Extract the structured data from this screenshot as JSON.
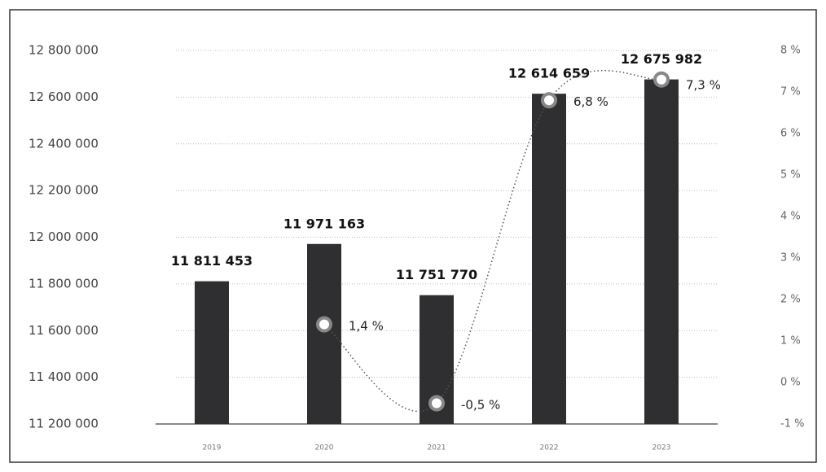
{
  "chart_data": {
    "type": "bar",
    "categories": [
      "2019",
      "2020",
      "2021",
      "2022",
      "2023"
    ],
    "series": [
      {
        "color": "#2f2f31",
        "values": [
          11811453,
          11971163,
          11751770,
          12614659,
          12675982
        ],
        "value_labels": [
          "11 811 453",
          "11 971 163",
          "11 751 770",
          "12 614 659",
          "12 675 982"
        ]
      },
      {
        "type": "line",
        "axis": "y2",
        "color": "#555555",
        "values": [
          null,
          1.4,
          -0.5,
          6.8,
          7.3
        ],
        "value_labels": [
          null,
          "1,4 %",
          "-0,5 %",
          "6,8 %",
          "7,3 %"
        ]
      }
    ],
    "ylim": [
      11200000,
      12800000
    ],
    "yticks": [
      {
        "value": 11200000,
        "label": "11 200 000"
      },
      {
        "value": 11400000,
        "label": "11 400 000"
      },
      {
        "value": 11600000,
        "label": "11 600 000"
      },
      {
        "value": 11800000,
        "label": "11 800 000"
      },
      {
        "value": 12000000,
        "label": "12 000 000"
      },
      {
        "value": 12200000,
        "label": "12 200 000"
      },
      {
        "value": 12400000,
        "label": "12 400 000"
      },
      {
        "value": 12600000,
        "label": "12 600 000"
      },
      {
        "value": 12800000,
        "label": "12 800 000"
      }
    ],
    "y2lim": [
      -1,
      8
    ],
    "y2ticks": [
      {
        "value": -1,
        "label": "-1 %"
      },
      {
        "value": 0,
        "label": "0 %"
      },
      {
        "value": 1,
        "label": "1 %"
      },
      {
        "value": 2,
        "label": "2 %"
      },
      {
        "value": 3,
        "label": "3 %"
      },
      {
        "value": 4,
        "label": "4 %"
      },
      {
        "value": 5,
        "label": "5 %"
      },
      {
        "value": 6,
        "label": "6 %"
      },
      {
        "value": 7,
        "label": "7 %"
      },
      {
        "value": 8,
        "label": "8 %"
      }
    ],
    "grid": true
  }
}
